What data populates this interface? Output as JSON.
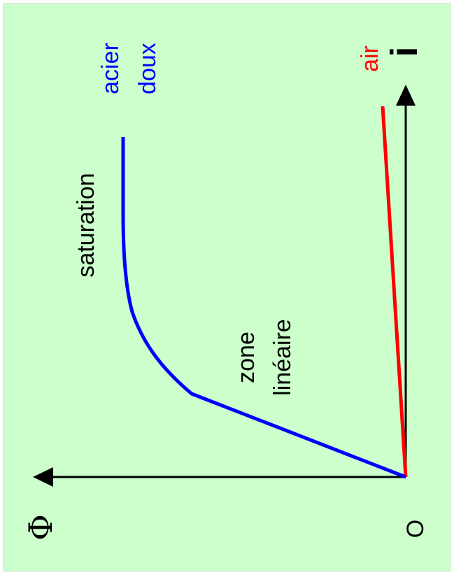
{
  "colors": {
    "background": "#ccffcc",
    "axis": "#000000",
    "steel_curve": "#0000ff",
    "air_line": "#ff0000"
  },
  "labels": {
    "origin": "O",
    "flux_axis": "Φ",
    "current_axis": "i",
    "steel_line1": "acier",
    "steel_line2": "doux",
    "air": "air",
    "saturation": "saturation",
    "linear_line1": "zone",
    "linear_line2": "linéaire"
  },
  "chart_data": {
    "type": "line",
    "x_axis": "Φ",
    "y_axis": "i",
    "origin": "O",
    "series": [
      {
        "name": "acier doux",
        "shape": "linear rise then saturation (knee)"
      },
      {
        "name": "air",
        "shape": "linear, small slope"
      }
    ],
    "annotations": [
      "zone linéaire",
      "saturation"
    ]
  }
}
